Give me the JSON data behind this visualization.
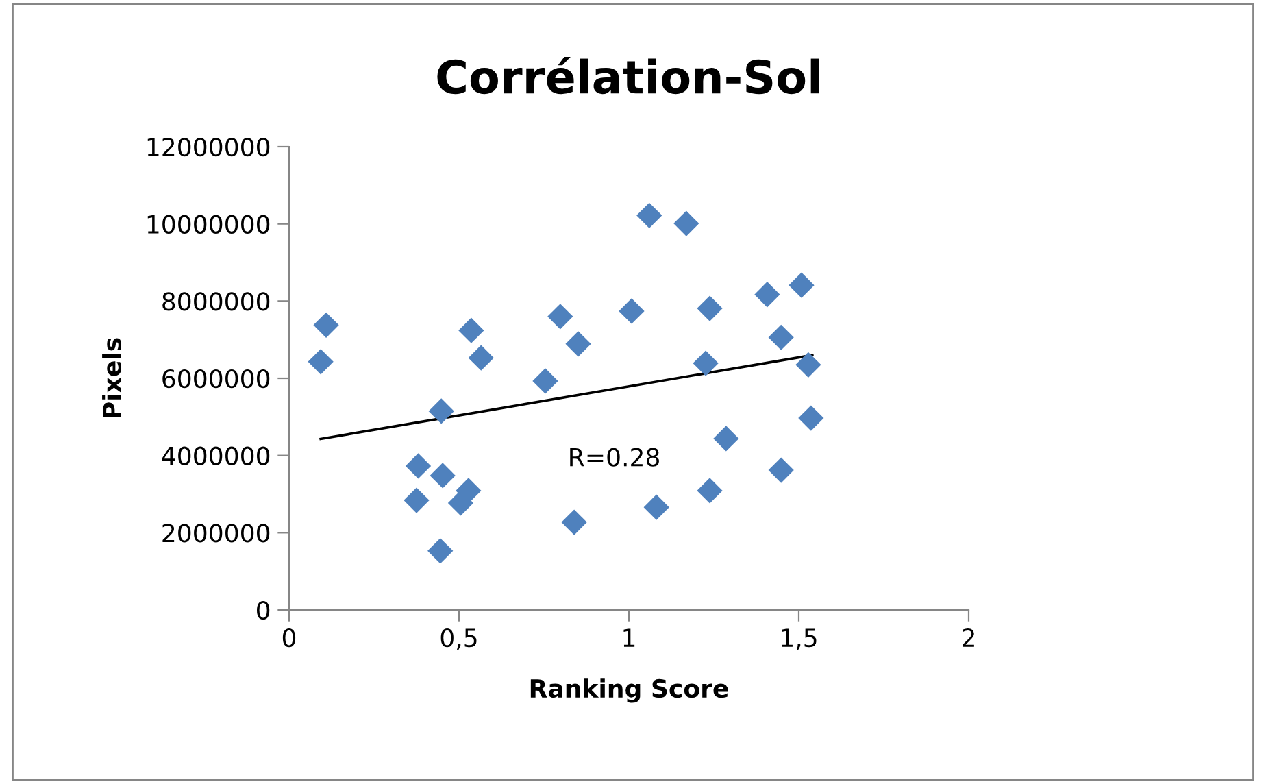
{
  "chart_data": {
    "type": "scatter",
    "title": "Corrélation-Sol",
    "xlabel": "Ranking Score",
    "ylabel": "Pixels",
    "xlim": [
      0,
      2
    ],
    "xticks": [
      0,
      {
        "value": 0.5,
        "label": "0,5"
      },
      1,
      {
        "value": 1.5,
        "label": "1,5"
      },
      2
    ],
    "ylim": [
      0,
      12000000
    ],
    "yticks": [
      0,
      2000000,
      4000000,
      6000000,
      8000000,
      10000000,
      12000000
    ],
    "grid": false,
    "legend": false,
    "series": [
      {
        "marker": "diamond",
        "color": "#4f81bd",
        "x": [
          0.093,
          0.109,
          0.38,
          0.375,
          0.448,
          0.452,
          0.445,
          0.505,
          0.528,
          0.536,
          0.565,
          0.754,
          0.798,
          0.851,
          0.839,
          1.008,
          1.06,
          1.081,
          1.169,
          1.286,
          1.238,
          1.226,
          1.238,
          1.407,
          1.508,
          1.448,
          1.448,
          1.528,
          1.536
        ],
        "values": [
          6430000,
          7380000,
          3730000,
          2840000,
          5150000,
          3480000,
          1530000,
          2770000,
          3090000,
          7240000,
          6530000,
          5930000,
          7600000,
          6890000,
          2270000,
          7740000,
          10220000,
          2660000,
          10010000,
          4440000,
          7810000,
          6390000,
          3090000,
          8170000,
          8410000,
          7060000,
          3620000,
          6350000,
          4970000
        ]
      },
      {
        "type": "line",
        "marker": "none",
        "color": "#000000",
        "x": [
          0.093,
          1.54
        ],
        "values": [
          4430000,
          6600000
        ]
      }
    ],
    "annotations": [
      "R=0.28"
    ]
  }
}
